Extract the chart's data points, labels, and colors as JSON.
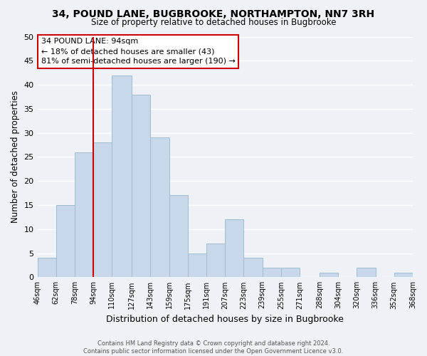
{
  "title_line1": "34, POUND LANE, BUGBROOKE, NORTHAMPTON, NN7 3RH",
  "title_line2": "Size of property relative to detached houses in Bugbrooke",
  "xlabel": "Distribution of detached houses by size in Bugbrooke",
  "ylabel": "Number of detached properties",
  "bar_color": "#c8d8ea",
  "bar_edge_color": "#a0bdd0",
  "bin_edges": [
    46,
    62,
    78,
    94,
    110,
    127,
    143,
    159,
    175,
    191,
    207,
    223,
    239,
    255,
    271,
    288,
    304,
    320,
    336,
    352,
    368
  ],
  "counts": [
    4,
    15,
    26,
    28,
    42,
    38,
    29,
    17,
    5,
    7,
    12,
    4,
    2,
    2,
    0,
    1,
    0,
    2,
    0,
    1
  ],
  "vline_x": 94,
  "vline_color": "#cc0000",
  "ylim": [
    0,
    50
  ],
  "yticks": [
    0,
    5,
    10,
    15,
    20,
    25,
    30,
    35,
    40,
    45,
    50
  ],
  "tick_labels": [
    "46sqm",
    "62sqm",
    "78sqm",
    "94sqm",
    "110sqm",
    "127sqm",
    "143sqm",
    "159sqm",
    "175sqm",
    "191sqm",
    "207sqm",
    "223sqm",
    "239sqm",
    "255sqm",
    "271sqm",
    "288sqm",
    "304sqm",
    "320sqm",
    "336sqm",
    "352sqm",
    "368sqm"
  ],
  "annotation_title": "34 POUND LANE: 94sqm",
  "annotation_line1": "← 18% of detached houses are smaller (43)",
  "annotation_line2": "81% of semi-detached houses are larger (190) →",
  "annotation_box_color": "#ffffff",
  "annotation_box_edge": "#cc0000",
  "footer_line1": "Contains HM Land Registry data © Crown copyright and database right 2024.",
  "footer_line2": "Contains public sector information licensed under the Open Government Licence v3.0.",
  "background_color": "#eef2f7",
  "grid_color": "#ffffff"
}
